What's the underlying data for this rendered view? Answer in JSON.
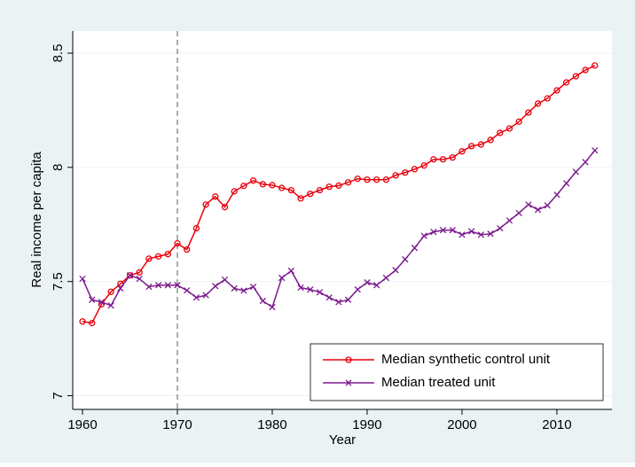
{
  "chart_data": {
    "type": "line",
    "xlabel": "Year",
    "ylabel": "Real income per capita",
    "x": [
      1960,
      1961,
      1962,
      1963,
      1964,
      1965,
      1966,
      1967,
      1968,
      1969,
      1970,
      1971,
      1972,
      1973,
      1974,
      1975,
      1976,
      1977,
      1978,
      1979,
      1980,
      1981,
      1982,
      1983,
      1984,
      1985,
      1986,
      1987,
      1988,
      1989,
      1990,
      1991,
      1992,
      1993,
      1994,
      1995,
      1996,
      1997,
      1998,
      1999,
      2000,
      2001,
      2002,
      2003,
      2004,
      2005,
      2006,
      2007,
      2008,
      2009,
      2010,
      2011,
      2012,
      2013,
      2014
    ],
    "series": [
      {
        "name": "Median synthetic control unit",
        "color": "#e8000b",
        "marker": "circle",
        "values": [
          7.325,
          7.318,
          7.4,
          7.455,
          7.49,
          7.527,
          7.54,
          7.6,
          7.61,
          7.62,
          7.667,
          7.64,
          7.733,
          7.837,
          7.872,
          7.826,
          7.895,
          7.919,
          7.942,
          7.926,
          7.922,
          7.91,
          7.9,
          7.864,
          7.884,
          7.9,
          7.915,
          7.92,
          7.934,
          7.95,
          7.946,
          7.946,
          7.946,
          7.965,
          7.977,
          7.992,
          8.008,
          8.035,
          8.035,
          8.043,
          8.07,
          8.093,
          8.1,
          8.12,
          8.151,
          8.17,
          8.2,
          8.24,
          8.279,
          8.302,
          8.337,
          8.372,
          8.399,
          8.426,
          8.446
        ]
      },
      {
        "name": "Median treated unit",
        "color": "#7b1a8e",
        "marker": "x",
        "values": [
          7.512,
          7.42,
          7.41,
          7.395,
          7.47,
          7.527,
          7.512,
          7.477,
          7.484,
          7.484,
          7.484,
          7.461,
          7.43,
          7.44,
          7.48,
          7.508,
          7.47,
          7.46,
          7.477,
          7.415,
          7.388,
          7.516,
          7.547,
          7.473,
          7.465,
          7.453,
          7.43,
          7.41,
          7.42,
          7.465,
          7.496,
          7.484,
          7.516,
          7.55,
          7.597,
          7.647,
          7.7,
          7.717,
          7.725,
          7.725,
          7.705,
          7.72,
          7.705,
          7.709,
          7.733,
          7.767,
          7.8,
          7.837,
          7.814,
          7.833,
          7.88,
          7.93,
          7.98,
          8.023,
          8.074
        ]
      }
    ],
    "xlim": [
      1958.97,
      2015.8
    ],
    "xticks": [
      1960,
      1970,
      1980,
      1990,
      2000,
      2010
    ],
    "ylim": [
      6.94,
      8.597
    ],
    "yticks": [
      7,
      7.5,
      8,
      8.5
    ],
    "vline": 1970,
    "grid": true,
    "legend": "lower right"
  }
}
